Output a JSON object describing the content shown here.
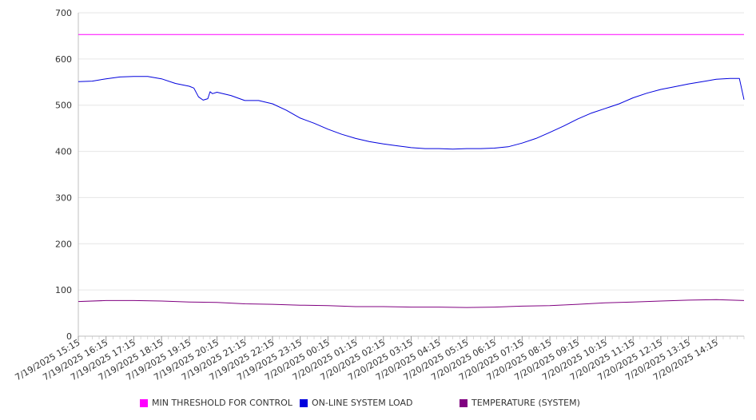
{
  "chart_data": {
    "type": "line",
    "ylim": [
      0,
      700
    ],
    "yticks": [
      0,
      100,
      200,
      300,
      400,
      500,
      600,
      700
    ],
    "grid": true,
    "legend_position": "bottom",
    "xticks": [
      "7/19/2025 15:15",
      "7/19/2025 16:15",
      "7/19/2025 17:15",
      "7/19/2025 18:15",
      "7/19/2025 19:15",
      "7/19/2025 20:15",
      "7/19/2025 21:15",
      "7/19/2025 22:15",
      "7/19/2025 23:15",
      "7/20/2025 00:15",
      "7/20/2025 01:15",
      "7/20/2025 02:15",
      "7/20/2025 03:15",
      "7/20/2025 04:15",
      "7/20/2025 05:15",
      "7/20/2025 06:15",
      "7/20/2025 07:15",
      "7/20/2025 08:15",
      "7/20/2025 09:15",
      "7/20/2025 10:15",
      "7/20/2025 11:15",
      "7/20/2025 12:15",
      "7/20/2025 13:15",
      "7/20/2025 14:15"
    ],
    "x_start": "7/19/2025 15:15",
    "x_end": "7/20/2025 15:15",
    "series": [
      {
        "name": "MIN THRESHOLD FOR CONTROL",
        "color": "#ff00ff",
        "points": [
          [
            "7/19/2025 15:15",
            653
          ],
          [
            "7/20/2025 15:15",
            653
          ]
        ]
      },
      {
        "name": "ON-LINE SYSTEM LOAD",
        "color": "#0000dd",
        "points": [
          [
            "7/19/2025 15:15",
            551
          ],
          [
            "7/19/2025 15:45",
            552
          ],
          [
            "7/19/2025 16:15",
            557
          ],
          [
            "7/19/2025 16:45",
            561
          ],
          [
            "7/19/2025 17:15",
            562
          ],
          [
            "7/19/2025 17:45",
            562
          ],
          [
            "7/19/2025 18:15",
            557
          ],
          [
            "7/19/2025 18:45",
            547
          ],
          [
            "7/19/2025 19:15",
            541
          ],
          [
            "7/19/2025 19:25",
            537
          ],
          [
            "7/19/2025 19:35",
            518
          ],
          [
            "7/19/2025 19:45",
            511
          ],
          [
            "7/19/2025 19:55",
            514
          ],
          [
            "7/19/2025 20:00",
            529
          ],
          [
            "7/19/2025 20:05",
            525
          ],
          [
            "7/19/2025 20:15",
            528
          ],
          [
            "7/19/2025 20:45",
            521
          ],
          [
            "7/19/2025 21:15",
            510
          ],
          [
            "7/19/2025 21:45",
            510
          ],
          [
            "7/19/2025 22:15",
            503
          ],
          [
            "7/19/2025 22:45",
            489
          ],
          [
            "7/19/2025 23:15",
            472
          ],
          [
            "7/19/2025 23:45",
            461
          ],
          [
            "7/20/2025 00:15",
            448
          ],
          [
            "7/20/2025 00:45",
            437
          ],
          [
            "7/20/2025 01:15",
            428
          ],
          [
            "7/20/2025 01:45",
            421
          ],
          [
            "7/20/2025 02:15",
            416
          ],
          [
            "7/20/2025 02:45",
            412
          ],
          [
            "7/20/2025 03:15",
            408
          ],
          [
            "7/20/2025 03:45",
            406
          ],
          [
            "7/20/2025 04:15",
            406
          ],
          [
            "7/20/2025 04:45",
            405
          ],
          [
            "7/20/2025 05:15",
            406
          ],
          [
            "7/20/2025 05:45",
            406
          ],
          [
            "7/20/2025 06:15",
            407
          ],
          [
            "7/20/2025 06:45",
            410
          ],
          [
            "7/20/2025 07:15",
            418
          ],
          [
            "7/20/2025 07:45",
            428
          ],
          [
            "7/20/2025 08:15",
            441
          ],
          [
            "7/20/2025 08:45",
            455
          ],
          [
            "7/20/2025 09:15",
            470
          ],
          [
            "7/20/2025 09:45",
            483
          ],
          [
            "7/20/2025 10:15",
            493
          ],
          [
            "7/20/2025 10:45",
            503
          ],
          [
            "7/20/2025 11:15",
            516
          ],
          [
            "7/20/2025 11:45",
            526
          ],
          [
            "7/20/2025 12:15",
            534
          ],
          [
            "7/20/2025 12:45",
            540
          ],
          [
            "7/20/2025 13:15",
            546
          ],
          [
            "7/20/2025 13:45",
            551
          ],
          [
            "7/20/2025 14:15",
            556
          ],
          [
            "7/20/2025 14:45",
            558
          ],
          [
            "7/20/2025 15:05",
            558
          ],
          [
            "7/20/2025 15:15",
            512
          ]
        ]
      },
      {
        "name": "TEMPERATURE (SYSTEM)",
        "color": "#800080",
        "points": [
          [
            "7/19/2025 15:15",
            75
          ],
          [
            "7/19/2025 16:15",
            77
          ],
          [
            "7/19/2025 17:15",
            77
          ],
          [
            "7/19/2025 18:15",
            76
          ],
          [
            "7/19/2025 19:15",
            74
          ],
          [
            "7/19/2025 20:15",
            73
          ],
          [
            "7/19/2025 21:15",
            70
          ],
          [
            "7/19/2025 22:15",
            69
          ],
          [
            "7/19/2025 23:15",
            67
          ],
          [
            "7/20/2025 00:15",
            66
          ],
          [
            "7/20/2025 01:15",
            64
          ],
          [
            "7/20/2025 02:15",
            64
          ],
          [
            "7/20/2025 03:15",
            63
          ],
          [
            "7/20/2025 04:15",
            63
          ],
          [
            "7/20/2025 05:15",
            62
          ],
          [
            "7/20/2025 06:15",
            63
          ],
          [
            "7/20/2025 07:15",
            65
          ],
          [
            "7/20/2025 08:15",
            66
          ],
          [
            "7/20/2025 09:15",
            69
          ],
          [
            "7/20/2025 10:15",
            72
          ],
          [
            "7/20/2025 11:15",
            74
          ],
          [
            "7/20/2025 12:15",
            76
          ],
          [
            "7/20/2025 13:15",
            78
          ],
          [
            "7/20/2025 14:15",
            79
          ],
          [
            "7/20/2025 15:15",
            77
          ]
        ]
      }
    ]
  }
}
